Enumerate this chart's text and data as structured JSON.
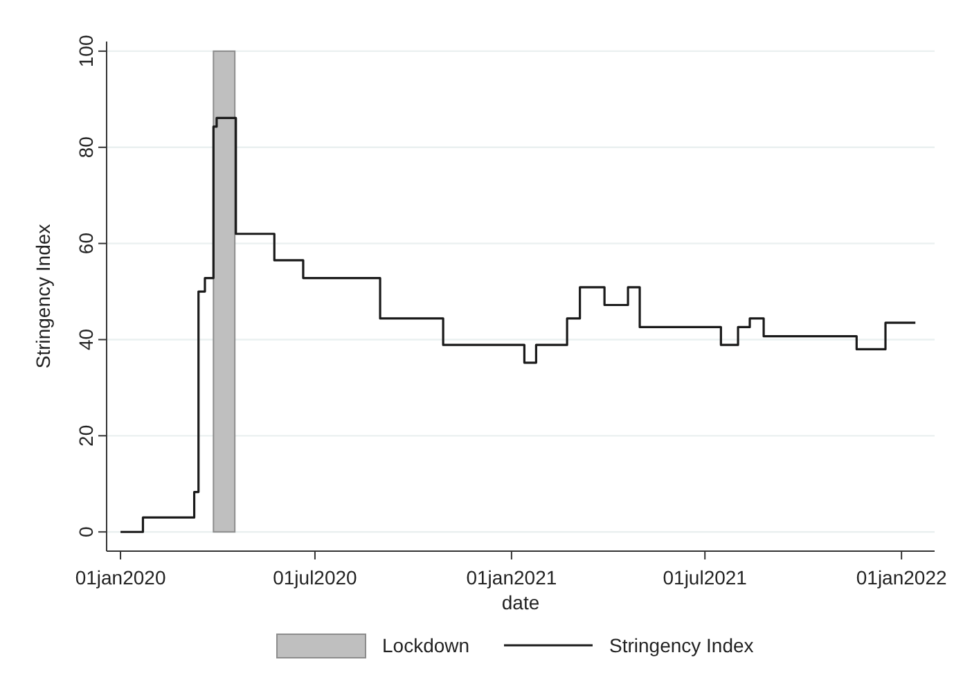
{
  "chart_data": {
    "type": "step",
    "xlabel": "date",
    "ylabel": "Stringency Index",
    "x": [
      "2020-01-01",
      "2020-01-22",
      "2020-03-10",
      "2020-03-14",
      "2020-03-20",
      "2020-03-28",
      "2020-03-31",
      "2020-04-18",
      "2020-05-24",
      "2020-06-20",
      "2020-08-31",
      "2020-10-29",
      "2021-01-13",
      "2021-01-24",
      "2021-02-22",
      "2021-03-06",
      "2021-03-29",
      "2021-04-20",
      "2021-05-01",
      "2021-07-16",
      "2021-08-01",
      "2021-08-12",
      "2021-08-25",
      "2021-11-20",
      "2021-12-17",
      "2022-01-14"
    ],
    "series": [
      {
        "name": "Stringency Index",
        "color": "#1a1a1a",
        "values": [
          0,
          3,
          8.3,
          50,
          52.8,
          84.3,
          86.1,
          62,
          56.5,
          52.8,
          44.4,
          38.9,
          35.2,
          38.9,
          44.4,
          50.9,
          47.2,
          50.9,
          42.6,
          38.9,
          42.6,
          44.4,
          40.7,
          38,
          43.5,
          43.5
        ]
      }
    ],
    "xlim": [
      "2019-12-19",
      "2022-02-01"
    ],
    "xticks": [
      {
        "value": "2020-01-01",
        "label": "01jan2020"
      },
      {
        "value": "2020-07-01",
        "label": "01jul2020"
      },
      {
        "value": "2021-01-01",
        "label": "01jan2021"
      },
      {
        "value": "2021-07-01",
        "label": "01jul2021"
      },
      {
        "value": "2022-01-01",
        "label": "01jan2022"
      }
    ],
    "ylim": [
      -4,
      102
    ],
    "yticks": [
      0,
      20,
      40,
      60,
      80,
      100
    ],
    "bands": [
      {
        "axis": "x",
        "from": "2020-03-28",
        "to": "2020-04-17",
        "label": "Lockdown",
        "color": "#bfbfbf"
      }
    ],
    "grid": "y",
    "legend": "bottom",
    "line_style": "solid"
  }
}
